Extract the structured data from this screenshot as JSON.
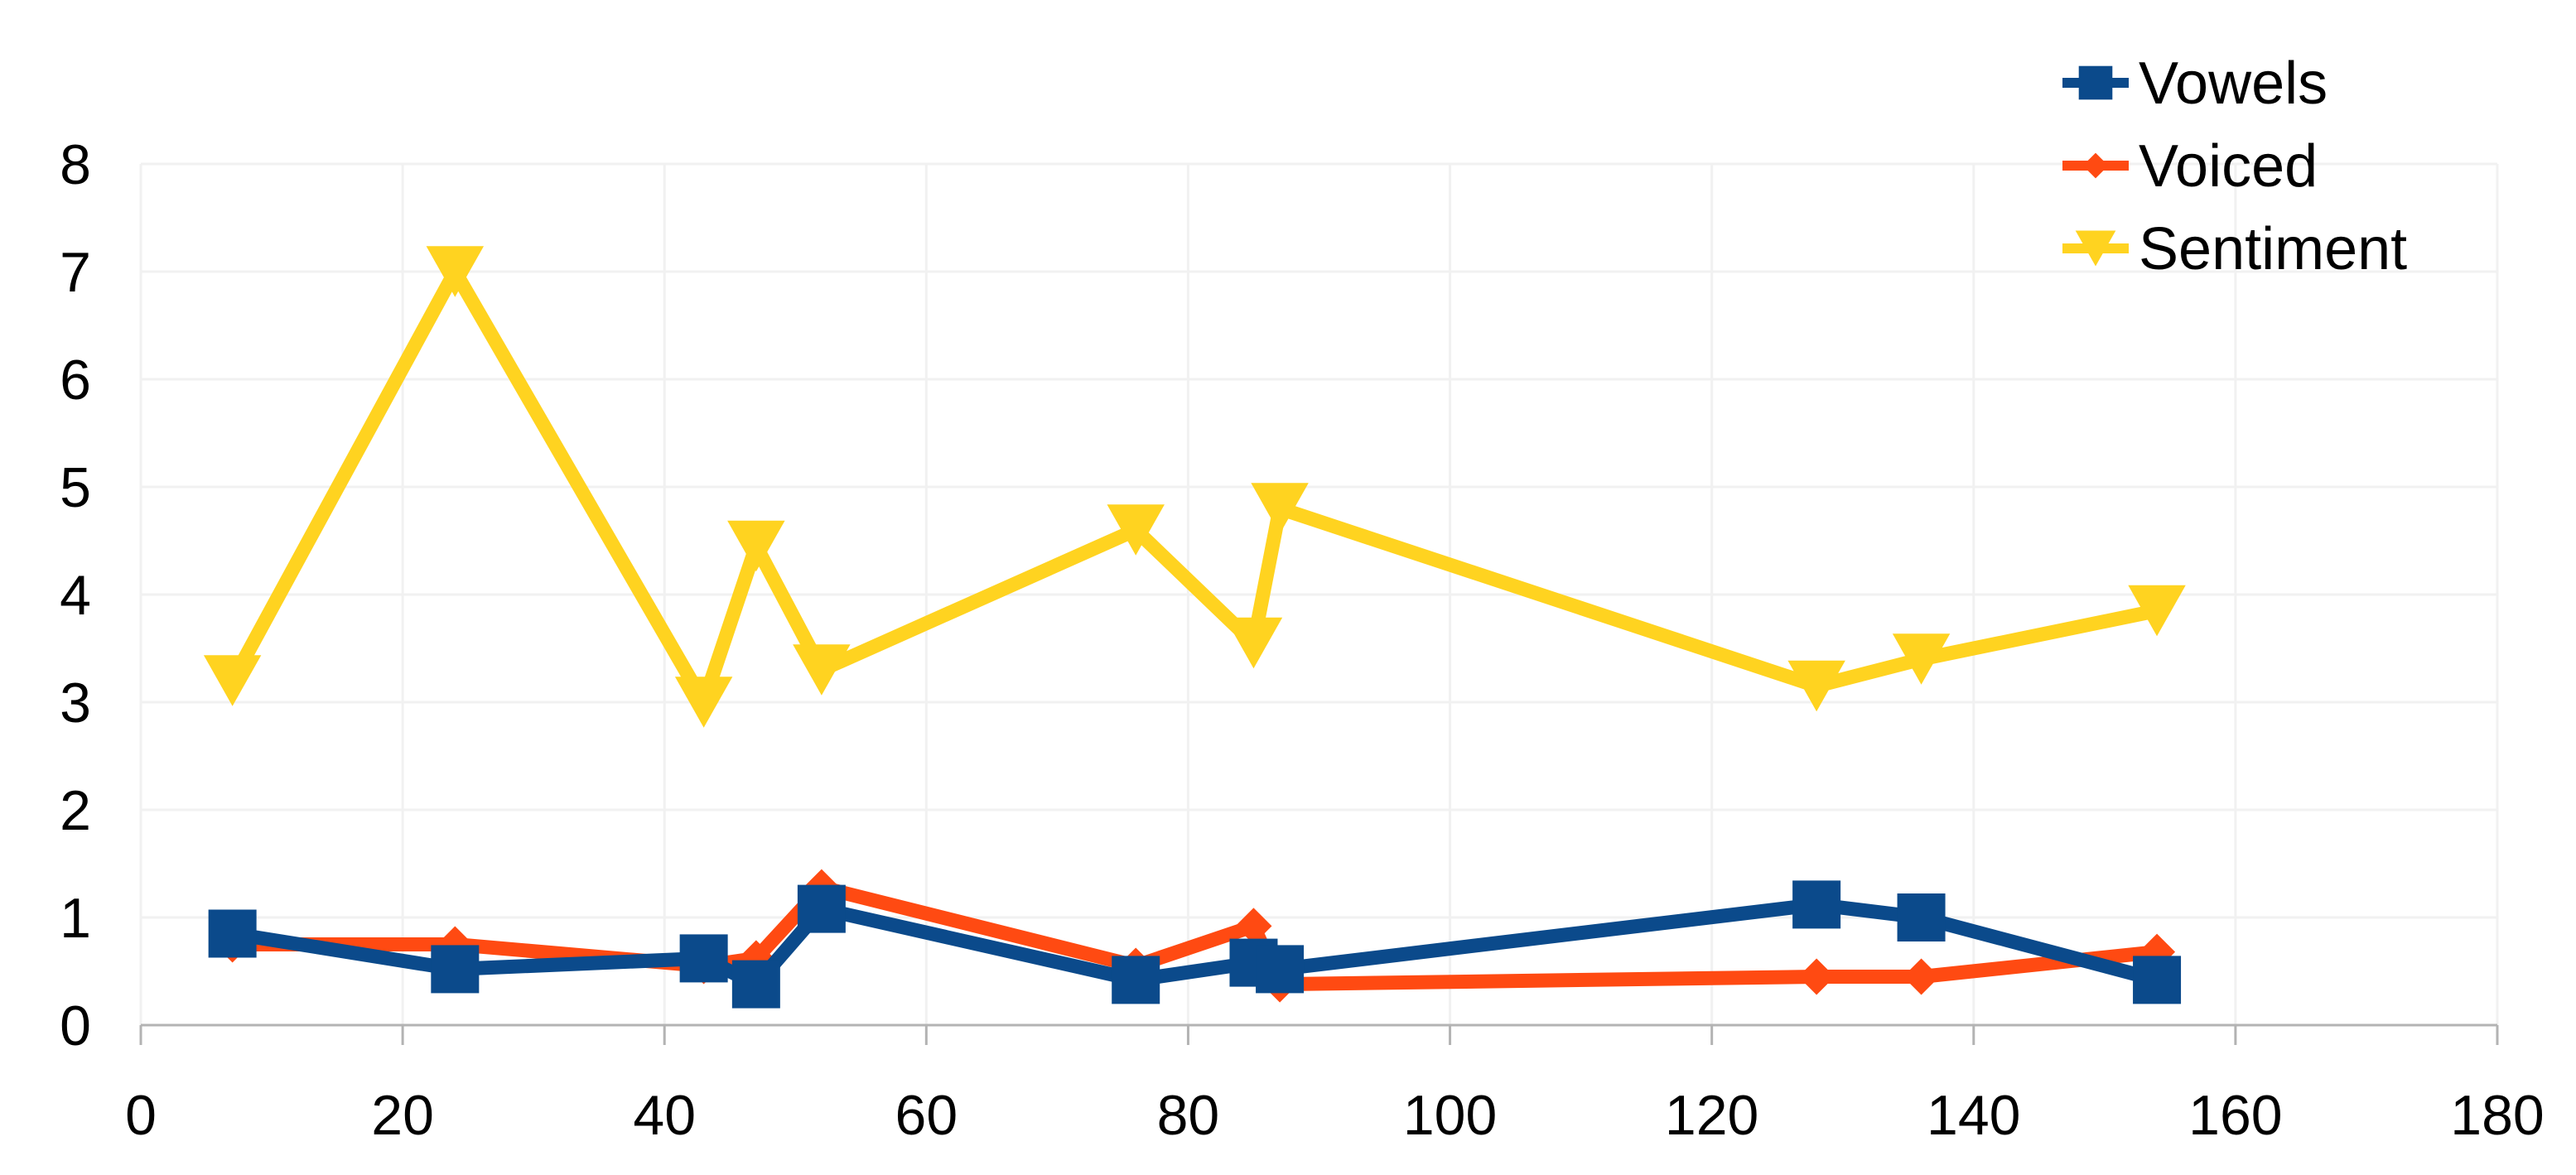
{
  "chart_data": {
    "type": "line",
    "title": "",
    "xlabel": "",
    "ylabel": "",
    "xlim": [
      0,
      180
    ],
    "ylim": [
      0,
      8
    ],
    "x_ticks": [
      0,
      20,
      40,
      60,
      80,
      100,
      120,
      140,
      160,
      180
    ],
    "y_ticks": [
      0,
      1,
      2,
      3,
      4,
      5,
      6,
      7,
      8
    ],
    "grid": true,
    "legend_position": "top-right",
    "series": [
      {
        "name": "Vowels",
        "color": "#0b4a8b",
        "marker": "square",
        "points": [
          [
            7,
            0.85
          ],
          [
            24,
            0.52
          ],
          [
            43,
            0.62
          ],
          [
            47,
            0.38
          ],
          [
            52,
            1.08
          ],
          [
            76,
            0.42
          ],
          [
            85,
            0.58
          ],
          [
            87,
            0.52
          ],
          [
            128,
            1.12
          ],
          [
            136,
            1.0
          ],
          [
            154,
            0.42
          ]
        ]
      },
      {
        "name": "Voiced",
        "color": "#ff4a12",
        "marker": "diamond",
        "points": [
          [
            7,
            0.75
          ],
          [
            24,
            0.75
          ],
          [
            43,
            0.55
          ],
          [
            47,
            0.62
          ],
          [
            52,
            1.28
          ],
          [
            76,
            0.55
          ],
          [
            85,
            0.92
          ],
          [
            87,
            0.38
          ],
          [
            128,
            0.45
          ],
          [
            136,
            0.45
          ],
          [
            154,
            0.68
          ]
        ]
      },
      {
        "name": "Sentiment",
        "color": "#ffd320",
        "marker": "triangle-down",
        "points": [
          [
            7,
            3.2
          ],
          [
            24,
            7.0
          ],
          [
            43,
            3.0
          ],
          [
            47,
            4.45
          ],
          [
            52,
            3.3
          ],
          [
            76,
            4.6
          ],
          [
            85,
            3.55
          ],
          [
            87,
            4.8
          ],
          [
            128,
            3.15
          ],
          [
            136,
            3.4
          ],
          [
            154,
            3.85
          ]
        ]
      }
    ]
  }
}
